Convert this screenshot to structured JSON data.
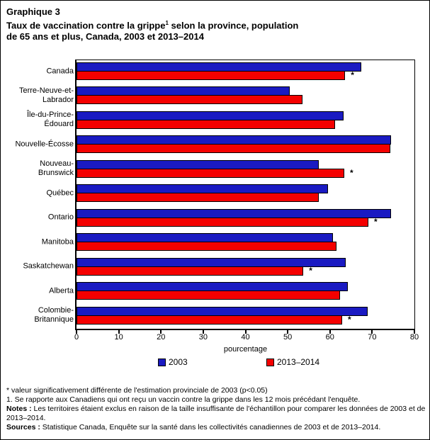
{
  "header": {
    "figure_label": "Graphique 3",
    "title_part1": "Taux de vaccination contre la grippe",
    "title_sup": "1",
    "title_part2": " selon la province, population",
    "title_line2": "de 65 ans et plus, Canada, 2003 et 2013–2014"
  },
  "chart_data": {
    "type": "bar",
    "orientation": "horizontal",
    "title": "Taux de vaccination contre la grippe¹ selon la province, population de 65 ans et plus, Canada, 2003 et 2013–2014",
    "xlabel": "pourcentage",
    "xlim": [
      0,
      80
    ],
    "xticks": [
      0,
      10,
      20,
      30,
      40,
      50,
      60,
      70,
      80
    ],
    "grid": false,
    "legend_position": "bottom",
    "significance_marker": "*",
    "categories": [
      {
        "id": "canada",
        "lines": [
          "Canada"
        ]
      },
      {
        "id": "terre-neuve-et-labrador",
        "lines": [
          "Terre-Neuve-et-",
          "Labrador"
        ]
      },
      {
        "id": "ile-du-prince-edouard",
        "lines": [
          "Île-du-Prince-",
          "Édouard"
        ]
      },
      {
        "id": "nouvelle-ecosse",
        "lines": [
          "Nouvelle-Écosse"
        ]
      },
      {
        "id": "nouveau-brunswick",
        "lines": [
          "Nouveau-",
          "Brunswick"
        ]
      },
      {
        "id": "quebec",
        "lines": [
          "Québec"
        ]
      },
      {
        "id": "ontario",
        "lines": [
          "Ontario"
        ]
      },
      {
        "id": "manitoba",
        "lines": [
          "Manitoba"
        ]
      },
      {
        "id": "saskatchewan",
        "lines": [
          "Saskatchewan"
        ]
      },
      {
        "id": "alberta",
        "lines": [
          "Alberta"
        ]
      },
      {
        "id": "colombie-britannique",
        "lines": [
          "Colombie-",
          "Britannique"
        ]
      }
    ],
    "series": [
      {
        "name": "2003",
        "color": "#1a1ac2",
        "values": [
          67.4,
          50.5,
          63.2,
          74.5,
          57.3,
          59.5,
          74.5,
          60.7,
          63.7,
          64.2,
          68.9
        ],
        "significant": [
          false,
          false,
          false,
          false,
          false,
          false,
          false,
          false,
          false,
          false,
          false
        ]
      },
      {
        "name": "2013–2014",
        "color": "#f40000",
        "values": [
          63.6,
          53.5,
          61.2,
          74.3,
          63.4,
          57.4,
          69.1,
          61.6,
          53.7,
          62.4,
          62.9
        ],
        "significant": [
          true,
          false,
          false,
          false,
          true,
          false,
          true,
          false,
          true,
          false,
          true
        ]
      }
    ]
  },
  "footnotes": [
    {
      "prefix": "",
      "text": "* valeur significativement différente de l'estimation provinciale de 2003 (p<0.05)"
    },
    {
      "prefix": "",
      "text": "1. Se rapporte aux Canadiens qui ont reçu un vaccin contre la grippe dans les 12 mois précédant l'enquête."
    },
    {
      "prefix": "Notes :",
      "text": " Les territoires étaient exclus en raison de la taille insuffisante de l'échantillon pour comparer les données de 2003 et de 2013–2014."
    },
    {
      "prefix": "Sources :",
      "text": " Statistique Canada, Enquête sur la santé dans les collectivités canadiennes de 2003 et de 2013–2014."
    }
  ]
}
